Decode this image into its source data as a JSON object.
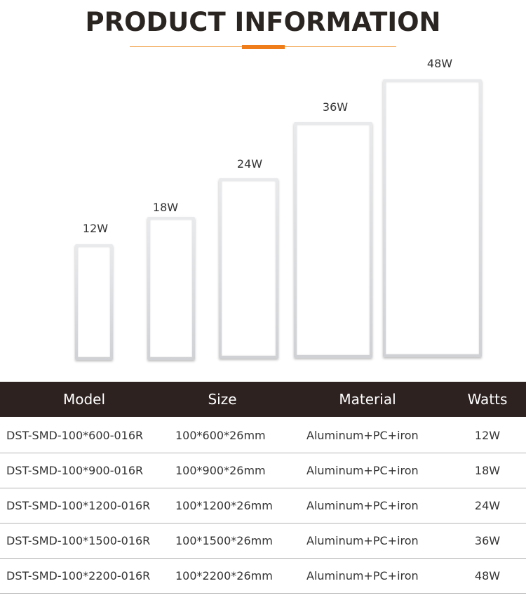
{
  "header": {
    "title": "PRODUCT INFORMATION"
  },
  "colors": {
    "title": "#2b2522",
    "accent": "#ef7d1a",
    "table_header_bg": "#2d2220",
    "table_header_text": "#ffffff"
  },
  "panels": [
    {
      "label": "12W"
    },
    {
      "label": "18W"
    },
    {
      "label": "24W"
    },
    {
      "label": "36W"
    },
    {
      "label": "48W"
    }
  ],
  "table": {
    "headers": [
      "Model",
      "Size",
      "Material",
      "Watts"
    ],
    "rows": [
      {
        "model": "DST-SMD-100*600-016R",
        "size": "100*600*26mm",
        "material": "Aluminum+PC+iron",
        "watts": "12W"
      },
      {
        "model": "DST-SMD-100*900-016R",
        "size": "100*900*26mm",
        "material": "Aluminum+PC+iron",
        "watts": "18W"
      },
      {
        "model": "DST-SMD-100*1200-016R",
        "size": "100*1200*26mm",
        "material": "Aluminum+PC+iron",
        "watts": "24W"
      },
      {
        "model": "DST-SMD-100*1500-016R",
        "size": "100*1500*26mm",
        "material": "Aluminum+PC+iron",
        "watts": "36W"
      },
      {
        "model": "DST-SMD-100*2200-016R",
        "size": "100*2200*26mm",
        "material": "Aluminum+PC+iron",
        "watts": "48W"
      }
    ]
  }
}
